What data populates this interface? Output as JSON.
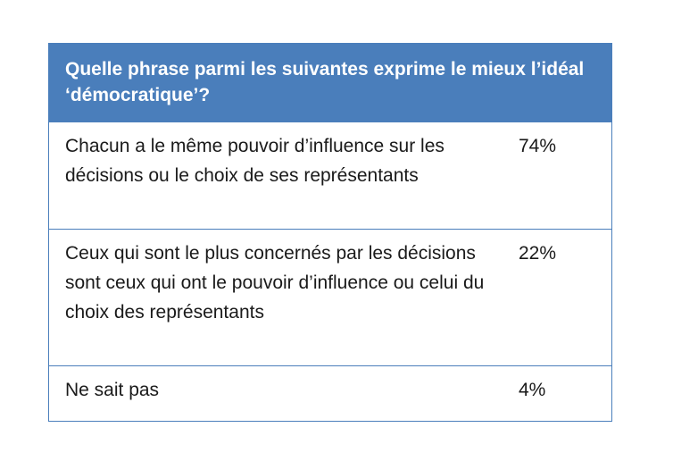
{
  "chart_data": {
    "type": "table",
    "title": "Quelle phrase parmi les suivantes exprime le mieux l’idéal ‘démocratique’?",
    "rows": [
      {
        "label": "Chacun a le même pouvoir d’influence sur les décisions ou le choix de ses représentants",
        "value": "74%"
      },
      {
        "label": "Ceux qui sont le plus concernés par les décisions sont ceux qui ont  le pouvoir d’influence ou celui du choix des représentants",
        "value": "22%"
      },
      {
        "label": "Ne sait pas",
        "value": "4%"
      }
    ]
  },
  "colors": {
    "header_bg": "#4a7ebb",
    "header_text": "#ffffff",
    "border": "#4a7ebb"
  }
}
